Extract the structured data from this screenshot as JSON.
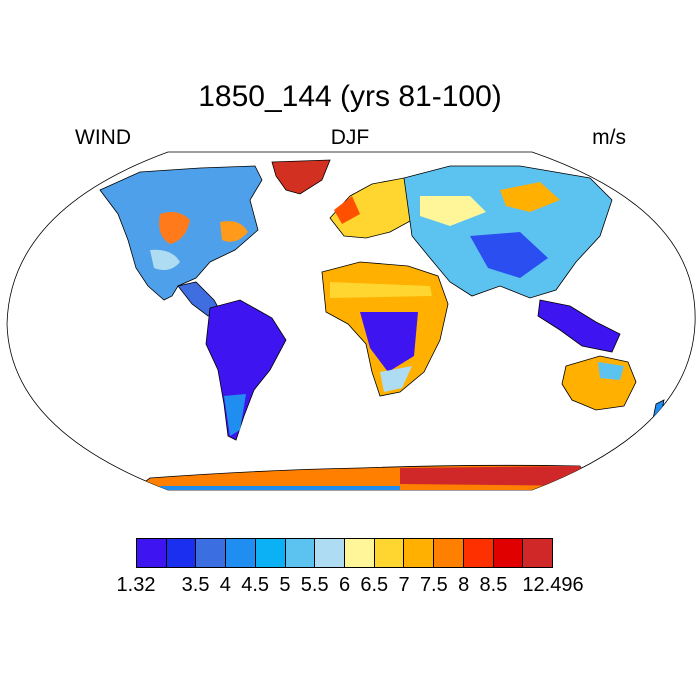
{
  "title": "1850_144 (yrs 81-100)",
  "left_label": "WIND",
  "center_label": "DJF",
  "right_label": "m/s",
  "colorbar": {
    "colors": [
      "#3e14f0",
      "#1a2fef",
      "#3b6ee0",
      "#1f8ef0",
      "#0bb1f4",
      "#5cc2f0",
      "#aedcf2",
      "#fff69a",
      "#ffd630",
      "#ffb000",
      "#ff8000",
      "#ff3000",
      "#e00000",
      "#d02828"
    ],
    "labels": [
      "1.32",
      "3.5",
      "4",
      "4.5",
      "5",
      "5.5",
      "6",
      "6.5",
      "7",
      "7.5",
      "8",
      "8.5",
      "12.496"
    ],
    "label_positions": [
      0,
      2,
      3,
      4,
      5,
      6,
      7,
      8,
      9,
      10,
      11,
      12,
      14
    ]
  }
}
